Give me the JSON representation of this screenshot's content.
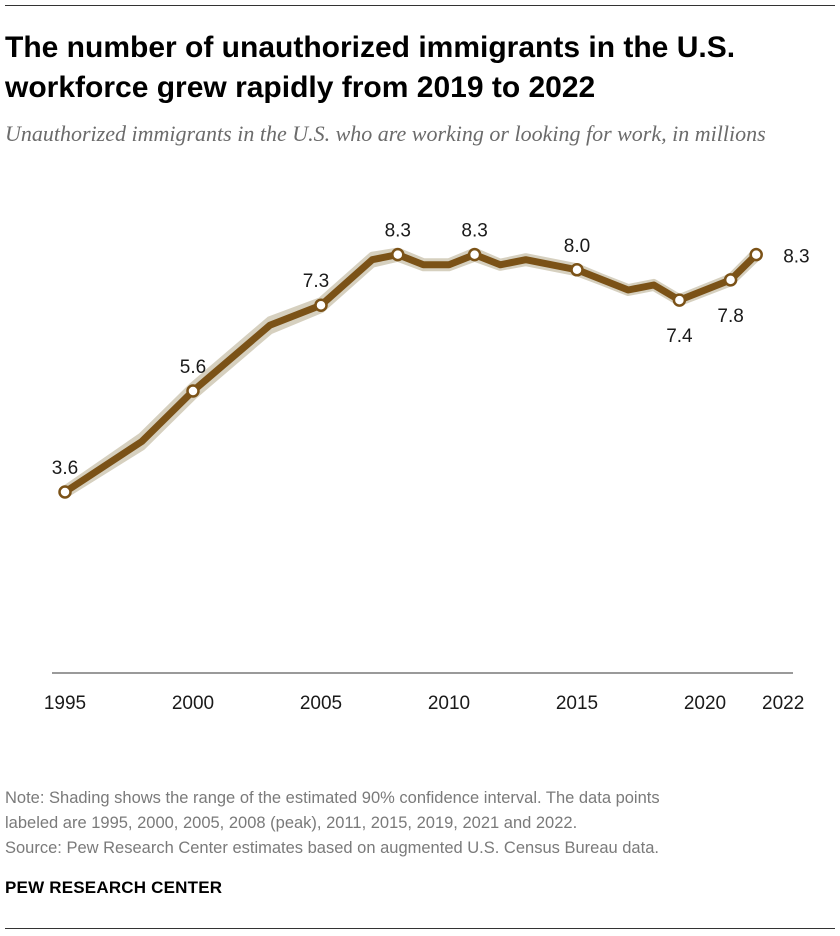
{
  "title": "The number of unauthorized immigrants in the U.S. workforce grew rapidly from 2019 to 2022",
  "subtitle": "Unauthorized immigrants in the U.S. who are working or looking for work, in millions",
  "note": {
    "line1": "Note: Shading shows the range of the estimated 90% confidence interval. The data points",
    "line2": "labeled are 1995, 2000, 2005, 2008 (peak), 2011, 2015, 2019, 2021 and 2022.",
    "source": "Source: Pew Research Center estimates based on augmented U.S. Census Bureau data."
  },
  "brand": "PEW RESEARCH CENTER",
  "colors": {
    "line": "#7b5217",
    "band": "#d6d0bf",
    "axis": "#9a9a9a",
    "note_text": "#7a7a7a",
    "subtitle_text": "#6b6b6b"
  },
  "chart_data": {
    "type": "line",
    "title": "The number of unauthorized immigrants in the U.S. workforce grew rapidly from 2019 to 2022",
    "subtitle": "Unauthorized immigrants in the U.S. who are working or looking for work, in millions",
    "xlabel": "",
    "ylabel": "",
    "xlim": [
      1995,
      2024
    ],
    "ylim": [
      0,
      9
    ],
    "grid": false,
    "x_ticks": [
      1995,
      2000,
      2005,
      2010,
      2015,
      2020,
      2022
    ],
    "series": [
      {
        "x": [
          1995,
          1998,
          2000,
          2003,
          2005,
          2007,
          2008,
          2009,
          2010,
          2011,
          2012,
          2013,
          2015,
          2016,
          2017,
          2018,
          2019,
          2021,
          2022
        ],
        "values": [
          3.6,
          4.6,
          5.6,
          6.9,
          7.3,
          8.2,
          8.3,
          8.1,
          8.1,
          8.3,
          8.1,
          8.2,
          8.0,
          7.8,
          7.6,
          7.7,
          7.4,
          7.8,
          8.3
        ],
        "ci_lower": [
          3.55,
          4.5,
          5.5,
          6.8,
          7.22,
          8.12,
          8.24,
          8.05,
          8.05,
          8.24,
          8.06,
          8.15,
          7.95,
          7.76,
          7.56,
          7.66,
          7.36,
          7.75,
          8.24
        ],
        "ci_upper": [
          3.65,
          4.7,
          5.7,
          7.0,
          7.38,
          8.28,
          8.36,
          8.15,
          8.15,
          8.36,
          8.14,
          8.25,
          8.05,
          7.84,
          7.64,
          7.74,
          7.44,
          7.85,
          8.36
        ]
      }
    ],
    "labeled_points": [
      {
        "x": 1995,
        "value": 3.6,
        "label": "3.6",
        "position": "above"
      },
      {
        "x": 2000,
        "value": 5.6,
        "label": "5.6",
        "position": "above"
      },
      {
        "x": 2005,
        "value": 7.3,
        "label": "7.3",
        "position": "above-left"
      },
      {
        "x": 2008,
        "value": 8.3,
        "label": "8.3",
        "position": "above"
      },
      {
        "x": 2011,
        "value": 8.3,
        "label": "8.3",
        "position": "above"
      },
      {
        "x": 2015,
        "value": 8.0,
        "label": "8.0",
        "position": "above"
      },
      {
        "x": 2019,
        "value": 7.4,
        "label": "7.4",
        "position": "below"
      },
      {
        "x": 2021,
        "value": 7.8,
        "label": "7.8",
        "position": "below"
      },
      {
        "x": 2022,
        "value": 8.3,
        "label": "8.3",
        "position": "right"
      }
    ]
  }
}
